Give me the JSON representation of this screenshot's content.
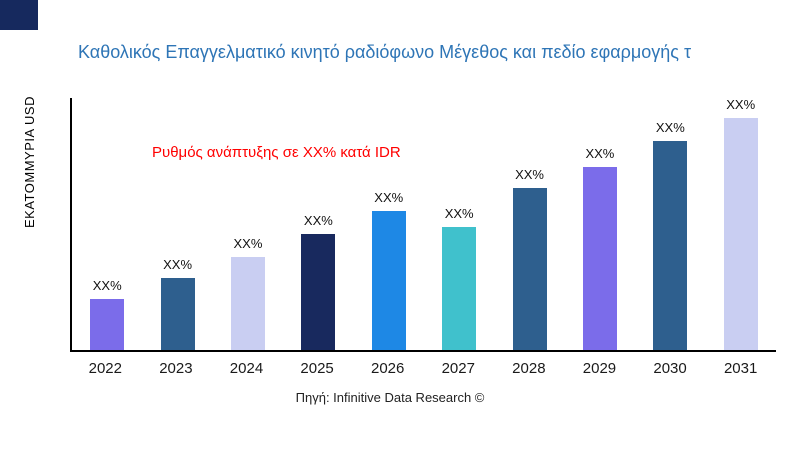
{
  "logo": {
    "color": "#16295E"
  },
  "header": {
    "title": "Καθολικός Επαγγελματικό κινητό ραδιόφωνο Μέγεθος και πεδίο εφαρμογής τ"
  },
  "y_axis": {
    "label": "ΕΚΑΤΟΜΜΥΡΙΑ USD"
  },
  "annotation": {
    "growth_note": "Ρυθμός ανάπτυξης σε XX% κατά IDR",
    "color": "#FF0000"
  },
  "source": {
    "text": "Πηγή: Infinitive Data Research ©"
  },
  "chart_data": {
    "type": "bar",
    "title": "Καθολικός Επαγγελματικό κινητό ραδιόφωνο Μέγεθος και πεδίο εφαρμογής τ",
    "xlabel": "",
    "ylabel": "ΕΚΑΤΟΜΜΥΡΙΑ USD",
    "grid": false,
    "legend": false,
    "categories": [
      "2022",
      "2023",
      "2024",
      "2025",
      "2026",
      "2027",
      "2028",
      "2029",
      "2030",
      "2031"
    ],
    "values": [
      22,
      31,
      40,
      50,
      60,
      53,
      70,
      79,
      90,
      100
    ],
    "value_labels": [
      "XX%",
      "XX%",
      "XX%",
      "XX%",
      "XX%",
      "XX%",
      "XX%",
      "XX%",
      "XX%",
      "XX%"
    ],
    "colors": [
      "#7B6CEA",
      "#2E5F8E",
      "#C9CEF2",
      "#18295E",
      "#1E88E5",
      "#40C1CC",
      "#2E5F8E",
      "#7B6CEA",
      "#2E5F8E",
      "#C9CEF2"
    ],
    "note": "Values are relative bar heights (percent of tallest bar); actual magnitudes masked as XX% in the chart."
  }
}
